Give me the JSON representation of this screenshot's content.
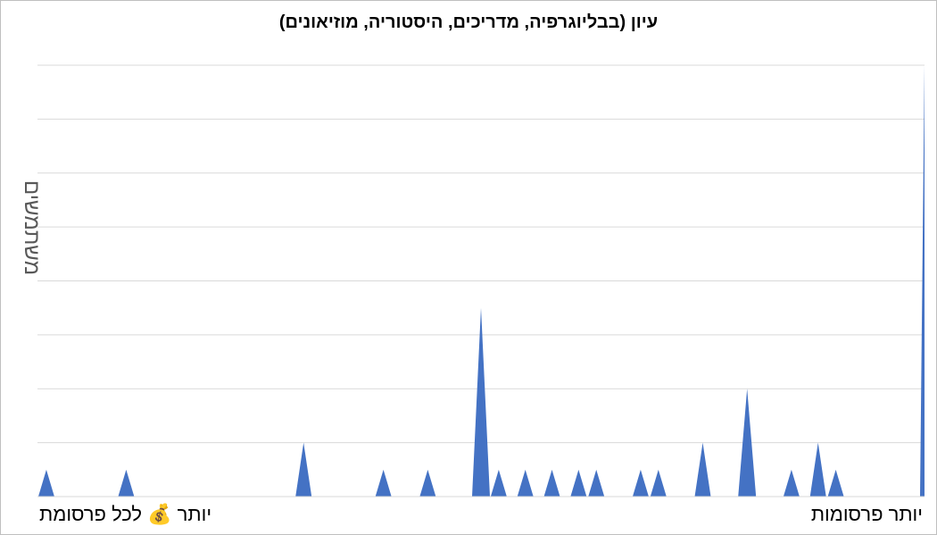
{
  "chart_data": {
    "type": "area",
    "title": "עיון (בבליוגרפיה, מדריכים, היסטוריה, מוזיאונים)",
    "ylabel": "משתמשים",
    "xlabel_left": "יותר 💰 לכל פרסומת",
    "xlabel_right": "יותר פרסומות",
    "ylim": [
      0,
      8
    ],
    "grid": true,
    "series": [
      {
        "color": "#4472c4",
        "x": [
          1,
          10,
          30,
          39,
          44,
          50,
          52,
          55,
          58,
          61,
          63,
          68,
          70,
          75,
          80,
          85,
          88,
          90,
          100
        ],
        "values": [
          0.5,
          0.5,
          1,
          0.5,
          0.5,
          3.5,
          0.5,
          0.5,
          0.5,
          0.5,
          0.5,
          0.5,
          0.5,
          1,
          2,
          0.5,
          1,
          0.5,
          8
        ]
      }
    ],
    "xlim": [
      0,
      100
    ]
  }
}
